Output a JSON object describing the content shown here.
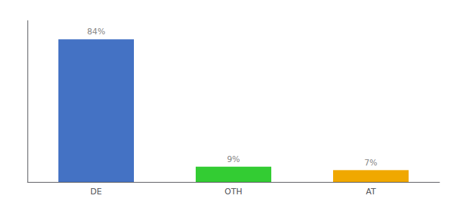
{
  "chart_data": {
    "type": "bar",
    "categories": [
      "DE",
      "OTH",
      "AT"
    ],
    "values": [
      84,
      9,
      7
    ],
    "value_labels": [
      "84%",
      "9%",
      "7%"
    ],
    "colors": [
      "#4472c4",
      "#33cc33",
      "#f0a800"
    ],
    "ylim": [
      0,
      95
    ],
    "data_labels": true,
    "tick_labels": "x",
    "grid": false
  }
}
